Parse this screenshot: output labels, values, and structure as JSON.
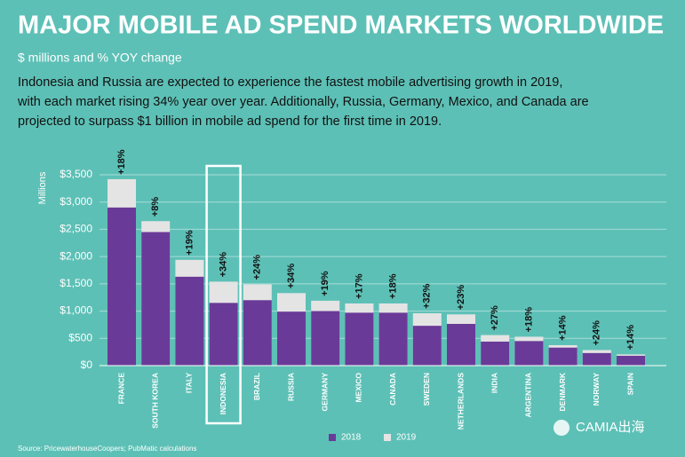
{
  "chart_data": {
    "type": "bar",
    "title": "MAJOR MOBILE AD SPEND MARKETS WORLDWIDE",
    "subtitle": "$ millions and % YOY change",
    "description_lines": [
      "Indonesia and Russia are expected to experience the fastest mobile advertising growth in 2019,",
      "with each market rising 34% year over year. Additionally, Russia, Germany, Mexico, and Canada are",
      "projected to surpass $1 billion in mobile ad spend for the first time in 2019."
    ],
    "y_label": "Millions",
    "categories": [
      "FRANCE",
      "SOUTH KOREA",
      "ITALY",
      "INDONESIA",
      "BRAZIL",
      "RUSSIA",
      "GERMANY",
      "MEXICO",
      "CANADA",
      "SWEDEN",
      "NETHERLANDS",
      "INDIA",
      "ARGENTINA",
      "DENMARK",
      "NORWAY",
      "SPAIN"
    ],
    "series": [
      {
        "name": "2019",
        "color": "#e4e4e4",
        "values": [
          3420,
          2650,
          1940,
          1540,
          1490,
          1330,
          1190,
          1140,
          1140,
          960,
          940,
          560,
          530,
          375,
          285,
          205
        ]
      },
      {
        "name": "2018",
        "color": "#6a3a98",
        "values": [
          2900,
          2450,
          1630,
          1150,
          1200,
          990,
          1000,
          970,
          970,
          730,
          765,
          440,
          450,
          330,
          230,
          180
        ]
      }
    ],
    "growth_labels": [
      "+18%",
      "+8%",
      "+19%",
      "+34%",
      "+24%",
      "+34%",
      "+19%",
      "+17%",
      "+18%",
      "+32%",
      "+23%",
      "+27%",
      "+18%",
      "+14%",
      "+24%",
      "+14%"
    ],
    "highlight": "INDONESIA",
    "ylim": [
      0,
      3500
    ],
    "yticks": [
      {
        "value": 0,
        "label": "$0"
      },
      {
        "value": 500,
        "label": "$500"
      },
      {
        "value": 1000,
        "label": "$1,000"
      },
      {
        "value": 1500,
        "label": "$1,500"
      },
      {
        "value": 2000,
        "label": "$2,000"
      },
      {
        "value": 2500,
        "label": "$2,500"
      },
      {
        "value": 3000,
        "label": "$3,000"
      },
      {
        "value": 3500,
        "label": "$3,500"
      }
    ],
    "grid": true,
    "source": "Source: PricewaterhouseCoopers; PubMatic calculations",
    "watermark": "CAMIA出海"
  }
}
